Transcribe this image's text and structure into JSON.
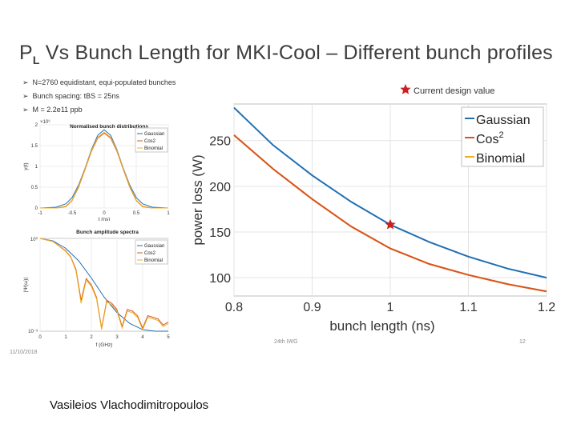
{
  "slide": {
    "title_main": "P",
    "title_sub": "L",
    "title_rest": " Vs Bunch Length for MKI-Cool – Different bunch profiles",
    "bullets": [
      "N=2760 equidistant, equi-populated bunches",
      "Bunch spacing: tBS = 25ns",
      "M = 2.2e11 ppb"
    ],
    "arrow_glyph": "➢",
    "footer_date": "11/10/2018",
    "footer_conference": "24th IWG",
    "footer_page": "12",
    "author": "Vasileios Vlachodimitropoulos"
  },
  "colors": {
    "gaussian": "#1f6fb2",
    "cos2": "#d9531e",
    "binomial": "#edb120",
    "marker": "#cc1f1f"
  },
  "chart_data": [
    {
      "id": "main",
      "type": "line",
      "title": "",
      "xlabel": "bunch length (ns)",
      "ylabel": "power loss (W)",
      "xlim": [
        0.8,
        1.2
      ],
      "ylim": [
        80,
        290
      ],
      "xticks": [
        0.8,
        0.9,
        1,
        1.1,
        1.2
      ],
      "xtick_labels": [
        "0.8",
        "0.9",
        "1",
        "1.1",
        "1.2"
      ],
      "yticks": [
        100,
        150,
        200,
        250
      ],
      "ytick_labels": [
        "100",
        "150",
        "200",
        "250"
      ],
      "grid": true,
      "legend_position": "top-right",
      "series": [
        {
          "name": "Gaussian",
          "color_key": "gaussian",
          "x": [
            0.8,
            0.85,
            0.9,
            0.95,
            1.0,
            1.05,
            1.1,
            1.15,
            1.2
          ],
          "y": [
            286,
            245,
            212,
            183,
            158,
            139,
            123,
            110,
            100
          ]
        },
        {
          "name": "Cos2",
          "color_key": "cos2",
          "x": [
            0.8,
            0.85,
            0.9,
            0.95,
            1.0,
            1.05,
            1.1,
            1.15,
            1.2
          ],
          "y": [
            256,
            219,
            186,
            156,
            132,
            115,
            103,
            93,
            85
          ]
        },
        {
          "name": "Binomial",
          "color_key": "binomial",
          "x": [
            0.8,
            0.85,
            0.9,
            0.95,
            1.0,
            1.05,
            1.1,
            1.15,
            1.2
          ],
          "y": [
            256,
            219,
            186,
            156,
            132,
            115,
            103,
            93,
            85
          ]
        }
      ],
      "legend_labels": [
        {
          "text": "Gaussian",
          "sup": "",
          "color_key": "gaussian"
        },
        {
          "text": "Cos",
          "sup": "2",
          "color_key": "cos2"
        },
        {
          "text": "Binomial",
          "sup": "",
          "color_key": "binomial"
        }
      ],
      "annotation": {
        "label": "Current design value",
        "x": 1.0,
        "y": 158,
        "marker": "star"
      }
    },
    {
      "id": "distributions",
      "type": "line",
      "title": "Normalised bunch distributions",
      "xlabel": "t (ns)",
      "ylabel": "y(t)",
      "exponent_label": "×10⁹",
      "xlim": [
        -1,
        1
      ],
      "ylim": [
        0,
        2
      ],
      "xticks": [
        -1,
        -0.5,
        0,
        0.5,
        1
      ],
      "xtick_labels": [
        "-1",
        "-0.5",
        "0",
        "0.5",
        "1"
      ],
      "yticks": [
        0,
        0.5,
        1,
        1.5,
        2
      ],
      "ytick_labels": [
        "0",
        "0.5",
        "1",
        "1.5",
        "2"
      ],
      "legend_position": "top-right",
      "series": [
        {
          "name": "Gaussian",
          "color_key": "gaussian",
          "x": [
            -1,
            -0.75,
            -0.6,
            -0.5,
            -0.4,
            -0.3,
            -0.2,
            -0.1,
            0,
            0.1,
            0.2,
            0.3,
            0.4,
            0.5,
            0.6,
            0.75,
            1
          ],
          "y": [
            0,
            0.02,
            0.1,
            0.25,
            0.55,
            0.95,
            1.4,
            1.75,
            1.88,
            1.75,
            1.4,
            0.95,
            0.55,
            0.25,
            0.1,
            0.02,
            0
          ]
        },
        {
          "name": "Cos2",
          "color_key": "cos2",
          "x": [
            -1,
            -0.75,
            -0.6,
            -0.5,
            -0.4,
            -0.3,
            -0.2,
            -0.1,
            0,
            0.1,
            0.2,
            0.3,
            0.4,
            0.5,
            0.6,
            0.75,
            1
          ],
          "y": [
            0,
            0,
            0.03,
            0.18,
            0.5,
            0.92,
            1.36,
            1.68,
            1.8,
            1.68,
            1.36,
            0.92,
            0.5,
            0.18,
            0.03,
            0,
            0
          ]
        },
        {
          "name": "Binomial",
          "color_key": "binomial",
          "x": [
            -1,
            -0.75,
            -0.6,
            -0.5,
            -0.4,
            -0.3,
            -0.2,
            -0.1,
            0,
            0.1,
            0.2,
            0.3,
            0.4,
            0.5,
            0.6,
            0.75,
            1
          ],
          "y": [
            0,
            0,
            0.04,
            0.19,
            0.52,
            0.94,
            1.38,
            1.7,
            1.82,
            1.7,
            1.38,
            0.94,
            0.52,
            0.19,
            0.04,
            0,
            0
          ]
        }
      ]
    },
    {
      "id": "spectra",
      "type": "line",
      "title": "Bunch amplitude spectra",
      "xlabel": "f (GHz)",
      "ylabel": "|Ψ(ω)|",
      "log_y": true,
      "xlim": [
        0,
        5
      ],
      "ylim_exponent": [
        -3,
        0
      ],
      "xticks": [
        0,
        1,
        2,
        3,
        4,
        5
      ],
      "xtick_labels": [
        "0",
        "1",
        "2",
        "3",
        "4",
        "5"
      ],
      "ytick_labels": [
        "10⁰",
        "10⁻³"
      ],
      "legend_position": "top-right",
      "series": [
        {
          "name": "Gaussian",
          "color_key": "gaussian",
          "x": [
            0,
            0.5,
            1,
            1.5,
            2,
            2.5,
            3,
            3.5,
            4,
            4.5,
            5
          ],
          "log10y": [
            0,
            -0.08,
            -0.32,
            -0.72,
            -1.28,
            -1.9,
            -2.4,
            -2.75,
            -2.95,
            -3.2,
            -3.5
          ]
        },
        {
          "name": "Cos2",
          "color_key": "cos2",
          "x": [
            0,
            0.5,
            1,
            1.2,
            1.4,
            1.6,
            1.8,
            2.0,
            2.2,
            2.4,
            2.6,
            2.8,
            3.0,
            3.2,
            3.4,
            3.6,
            3.8,
            4.0,
            4.2,
            4.4,
            4.6,
            4.8,
            5
          ],
          "log10y": [
            0,
            -0.1,
            -0.4,
            -0.6,
            -1.0,
            -2.0,
            -1.3,
            -1.5,
            -1.9,
            -2.9,
            -2.0,
            -2.1,
            -2.3,
            -2.85,
            -2.3,
            -2.35,
            -2.5,
            -2.9,
            -2.5,
            -2.55,
            -2.6,
            -2.8,
            -2.7
          ]
        },
        {
          "name": "Binomial",
          "color_key": "binomial",
          "x": [
            0,
            0.5,
            1,
            1.2,
            1.4,
            1.6,
            1.8,
            2.0,
            2.2,
            2.4,
            2.6,
            2.8,
            3.0,
            3.2,
            3.4,
            3.6,
            3.8,
            4.0,
            4.2,
            4.4,
            4.6,
            4.8,
            5
          ],
          "log10y": [
            0,
            -0.1,
            -0.42,
            -0.62,
            -1.05,
            -2.1,
            -1.35,
            -1.55,
            -1.95,
            -2.95,
            -2.05,
            -2.15,
            -2.35,
            -2.9,
            -2.35,
            -2.4,
            -2.55,
            -2.95,
            -2.55,
            -2.6,
            -2.65,
            -2.85,
            -2.75
          ]
        }
      ]
    }
  ]
}
